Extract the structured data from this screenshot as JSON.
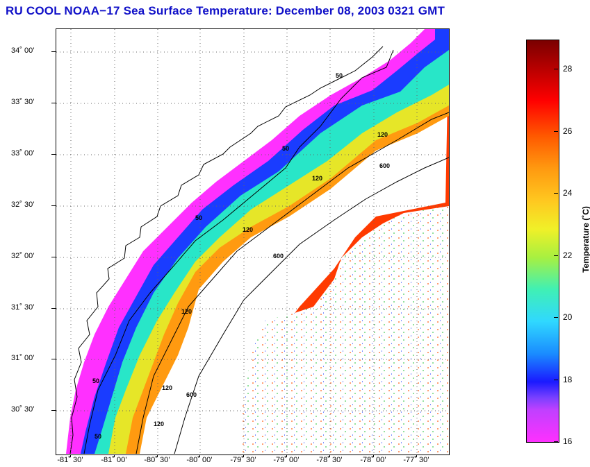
{
  "title": "RU COOL  NOAA−17  Sea Surface Temperature:  December 08, 2003 0321 GMT",
  "lat_labels": [
    "34˚ 00’",
    "33˚ 30’",
    "33˚ 00’",
    "32˚ 30’",
    "32˚ 00’",
    "31˚ 30’",
    "31˚ 00’",
    "30˚ 30’"
  ],
  "lon_labels": [
    "-81˚ 30’",
    "-81˚ 00’",
    "-80˚ 30’",
    "-80˚ 00’",
    "-79˚ 30’",
    "-79˚ 00’",
    "-78˚ 30’",
    "-78˚ 00’",
    "-77˚ 30’"
  ],
  "colorbar": {
    "title": "Temperature (˚C)",
    "ticks": [
      "28",
      "26",
      "24",
      "22",
      "20",
      "18",
      "16"
    ],
    "min": 16,
    "max": 29
  },
  "contours": {
    "label_50": "50",
    "label_120": "120",
    "label_600": "600"
  },
  "colors": {
    "title": "#1010c8",
    "warm": "#ff3a00",
    "cold": "#ff30ff"
  }
}
